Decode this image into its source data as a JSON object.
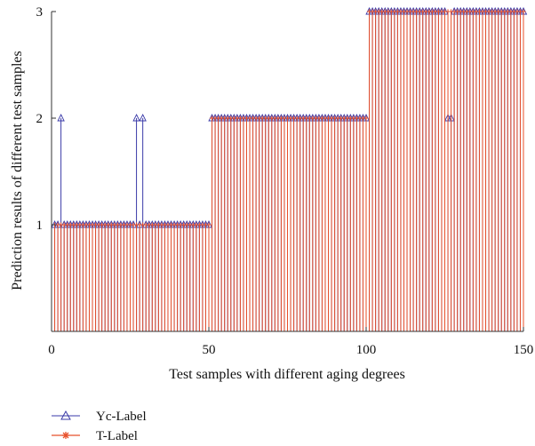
{
  "chart_data": {
    "type": "stem",
    "xlabel": "Test samples with different aging degrees",
    "ylabel": "Prediction results of different test samples",
    "xlim": [
      0,
      150
    ],
    "ylim": [
      0,
      3
    ],
    "x_ticks": [
      "0",
      "50",
      "100",
      "150"
    ],
    "y_ticks": [
      "1",
      "2",
      "3"
    ],
    "grid": false,
    "legend_position": "bottom-left",
    "series": [
      {
        "name": "Yc-Label",
        "marker": "triangle",
        "color": "#3a3aa8",
        "values_description": "Predicted labels per sample; samples 1-50 class 1, 51-100 class 2, 101-150 class 3, with misclassifications listed",
        "base_segments": [
          {
            "x_from": 1,
            "x_to": 50,
            "y": 1
          },
          {
            "x_from": 51,
            "x_to": 100,
            "y": 2
          },
          {
            "x_from": 101,
            "x_to": 150,
            "y": 3
          }
        ],
        "exceptions": [
          {
            "x": 3,
            "y": 2
          },
          {
            "x": 27,
            "y": 2
          },
          {
            "x": 29,
            "y": 2
          },
          {
            "x": 126,
            "y": 2
          },
          {
            "x": 127,
            "y": 2
          }
        ]
      },
      {
        "name": "T-Label",
        "marker": "star",
        "color": "#e8502a",
        "base_segments": [
          {
            "x_from": 1,
            "x_to": 50,
            "y": 1
          },
          {
            "x_from": 51,
            "x_to": 100,
            "y": 2
          },
          {
            "x_from": 101,
            "x_to": 150,
            "y": 3
          }
        ]
      }
    ]
  }
}
